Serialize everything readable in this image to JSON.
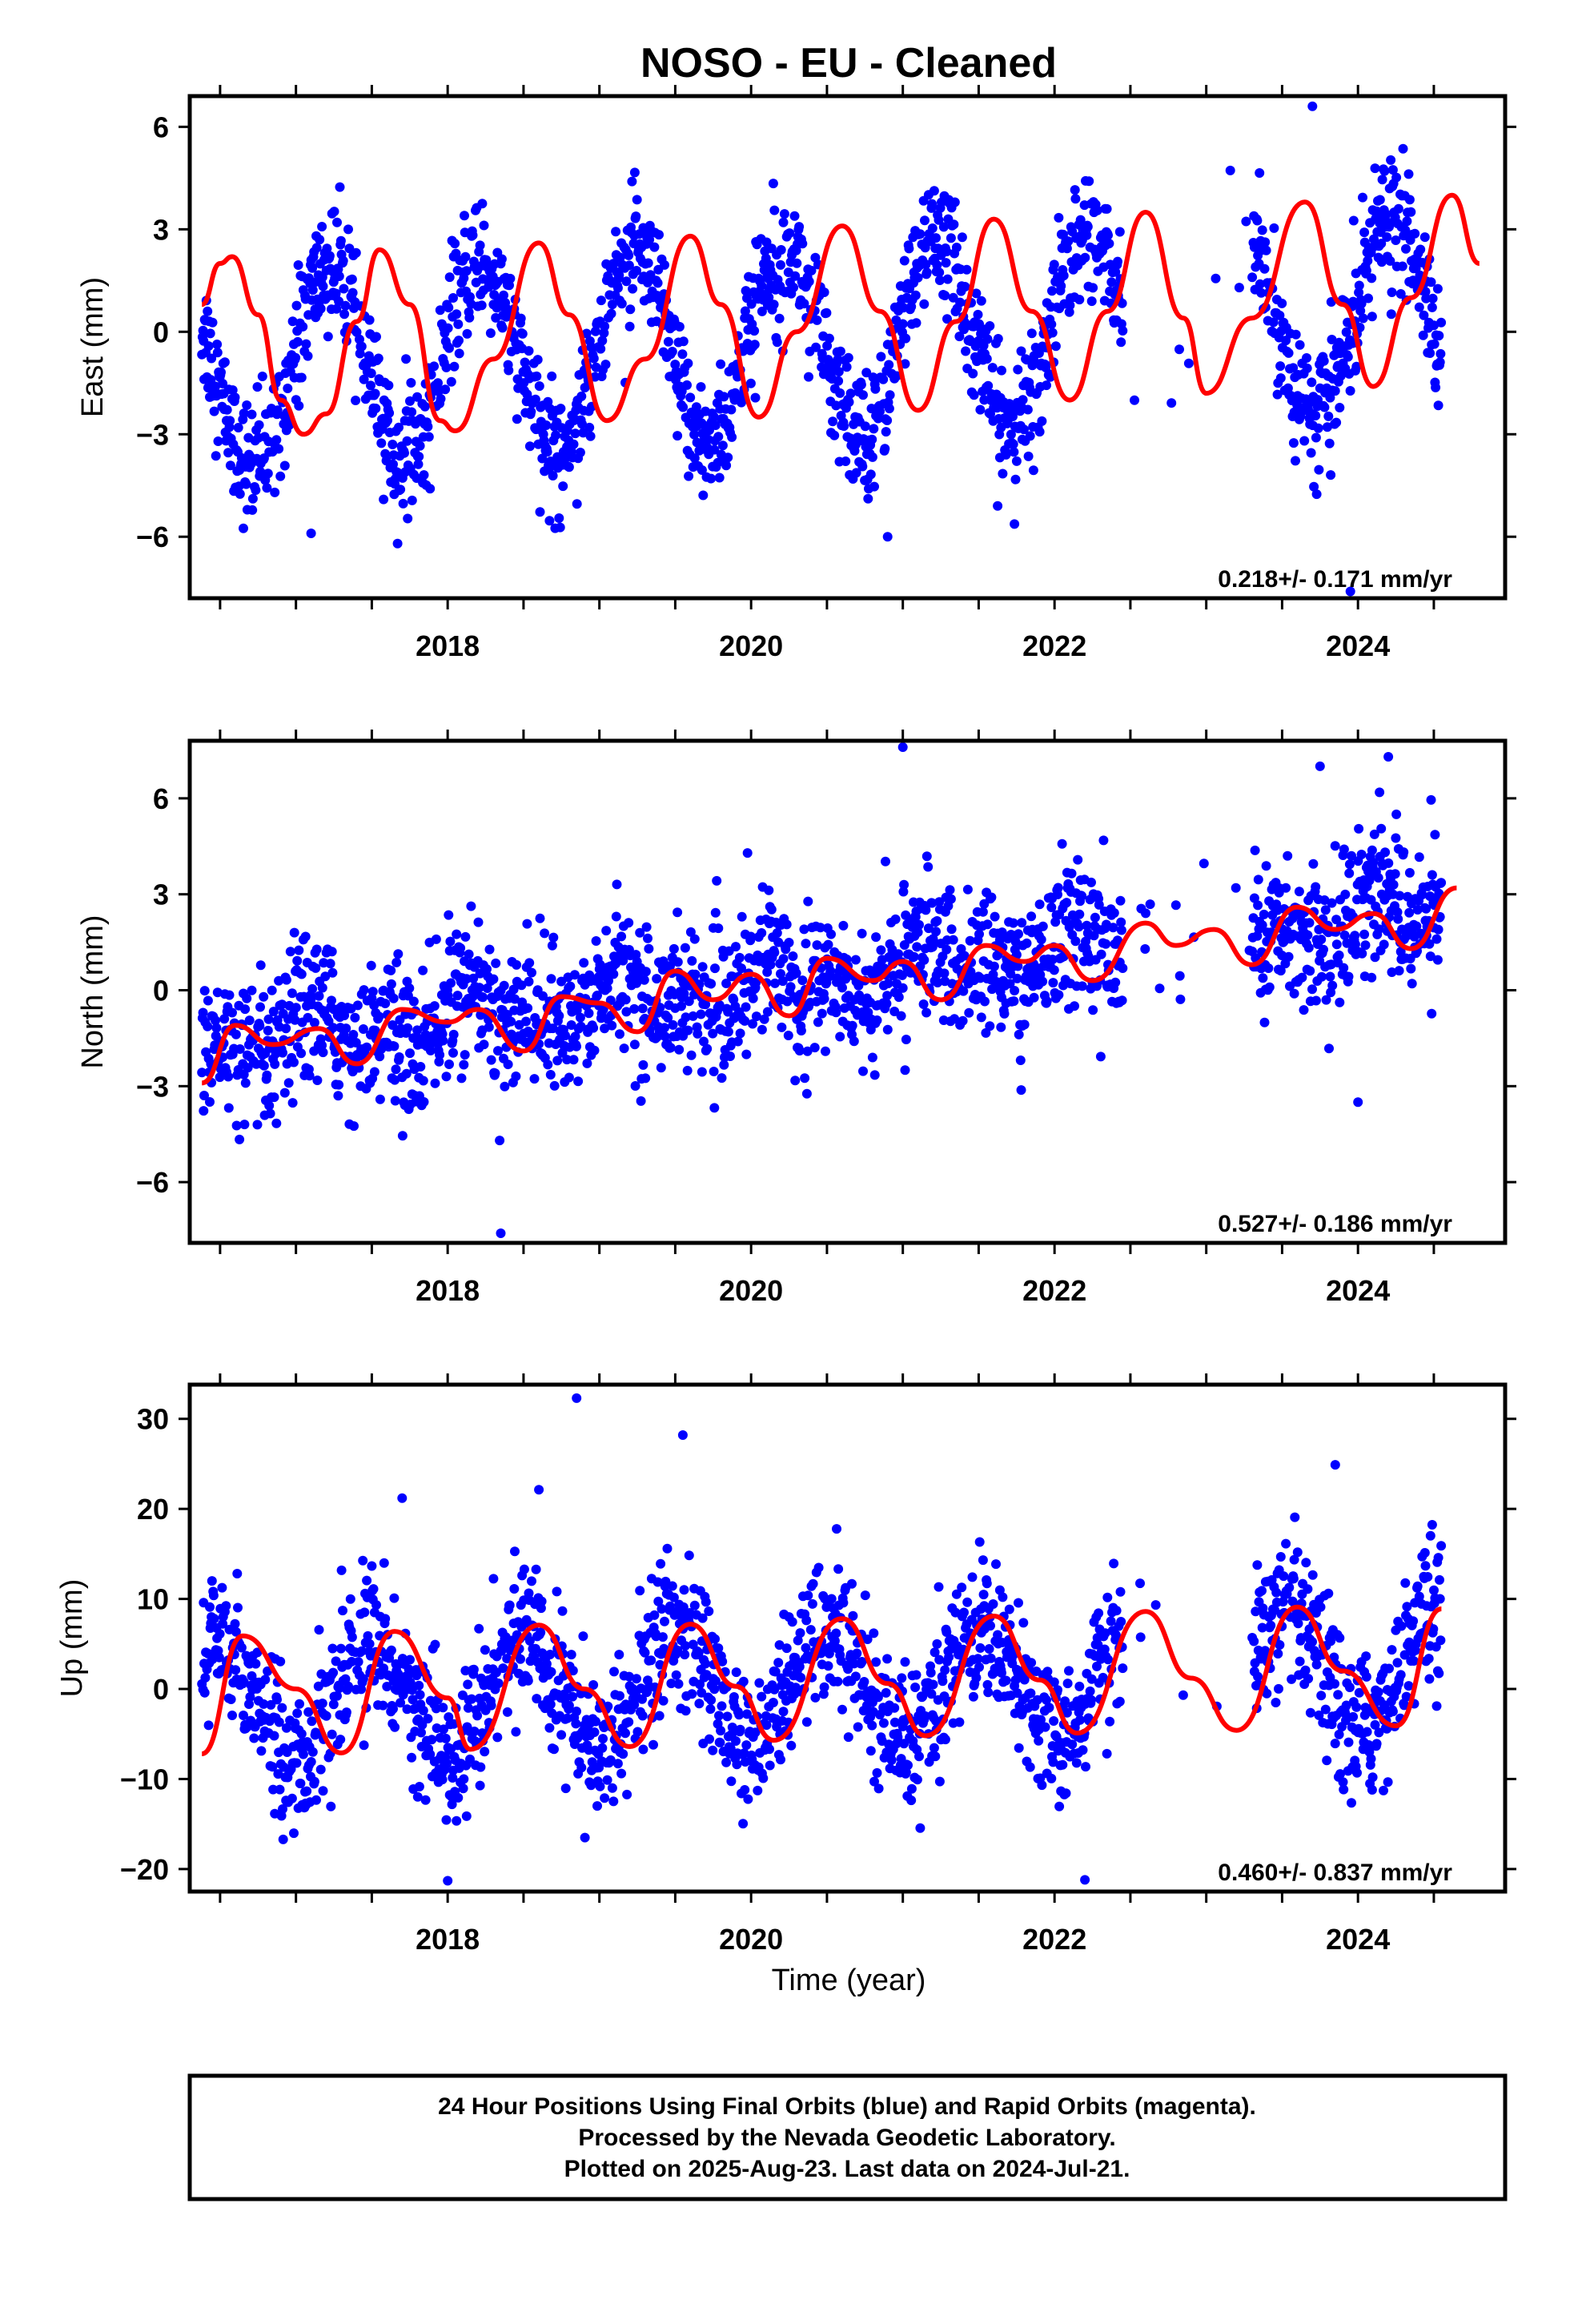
{
  "chart_data": {
    "title": "NOSO  - EU - Cleaned",
    "type": "scatter",
    "xlabel": "Time (year)",
    "x_range": [
      2016.3,
      2024.97
    ],
    "x_tick_labels": [
      "2018",
      "2020",
      "2022",
      "2024"
    ],
    "x_tick_values": [
      2018,
      2020,
      2022,
      2024
    ],
    "x_minor_ticks": [
      2016.5,
      2017,
      2017.5,
      2018,
      2018.5,
      2019,
      2019.5,
      2020,
      2020.5,
      2021,
      2021.5,
      2022,
      2022.5,
      2023,
      2023.5,
      2024,
      2024.5
    ],
    "colors": {
      "observed": "#0000ff",
      "model": "#ff0000",
      "frame": "#000000"
    },
    "data_span": {
      "start": 2016.38,
      "end": 2024.55
    },
    "panels": [
      {
        "name": "east",
        "ylabel": "East (mm)",
        "ylim": [
          -7.8,
          6.9
        ],
        "y_ticks": [
          -6,
          -3,
          0,
          3,
          6
        ],
        "y_tick_labels": [
          "−6",
          "−3",
          "0",
          "3",
          "6"
        ],
        "rate_text": "0.218+/- 0.171 mm/yr",
        "model": {
          "offset": -0.3,
          "trend": 0.218,
          "trend_ref": 2020.4,
          "annual_sin": 2.75,
          "annual_cos": 0.6,
          "semi_sin": 0.0,
          "semi_cos": 0.0
        },
        "scatter_sigma": 0.9,
        "model_curve_points": [
          [
            2016.38,
            0.8
          ],
          [
            2016.5,
            2.0
          ],
          [
            2016.58,
            2.2
          ],
          [
            2016.75,
            0.5
          ],
          [
            2016.9,
            -2.0
          ],
          [
            2017.05,
            -3.0
          ],
          [
            2017.2,
            -2.4
          ],
          [
            2017.4,
            0.3
          ],
          [
            2017.55,
            2.4
          ],
          [
            2017.75,
            0.8
          ],
          [
            2017.95,
            -2.6
          ],
          [
            2018.05,
            -2.9
          ],
          [
            2018.3,
            -0.8
          ],
          [
            2018.6,
            2.6
          ],
          [
            2018.8,
            0.5
          ],
          [
            2019.05,
            -2.6
          ],
          [
            2019.3,
            -0.8
          ],
          [
            2019.6,
            2.8
          ],
          [
            2019.8,
            0.8
          ],
          [
            2020.05,
            -2.5
          ],
          [
            2020.3,
            0.0
          ],
          [
            2020.6,
            3.1
          ],
          [
            2020.85,
            0.6
          ],
          [
            2021.1,
            -2.3
          ],
          [
            2021.35,
            0.3
          ],
          [
            2021.6,
            3.3
          ],
          [
            2021.85,
            0.6
          ],
          [
            2022.1,
            -2.0
          ],
          [
            2022.35,
            0.6
          ],
          [
            2022.6,
            3.5
          ],
          [
            2022.85,
            0.4
          ],
          [
            2023.0,
            -1.8
          ],
          [
            2023.3,
            0.4
          ],
          [
            2023.65,
            3.8
          ],
          [
            2023.9,
            0.8
          ],
          [
            2024.1,
            -1.6
          ],
          [
            2024.35,
            1.0
          ],
          [
            2024.62,
            4.0
          ],
          [
            2024.8,
            2.0
          ]
        ],
        "outliers": [
          [
            2023.95,
            -7.6
          ],
          [
            2017.1,
            -5.9
          ],
          [
            2020.9,
            -6.0
          ],
          [
            2023.7,
            6.6
          ]
        ]
      },
      {
        "name": "north",
        "ylabel": "North (mm)",
        "ylim": [
          -7.9,
          7.8
        ],
        "y_ticks": [
          -6,
          -3,
          0,
          3,
          6
        ],
        "y_tick_labels": [
          "−6",
          "−3",
          "0",
          "3",
          "6"
        ],
        "rate_text": "0.527+/- 0.186 mm/yr",
        "model": {
          "offset": 0.3,
          "trend": 0.527,
          "trend_ref": 2020.4,
          "annual_sin": 0.5,
          "annual_cos": 0.3,
          "semi_sin": 0.4,
          "semi_cos": 0.2
        },
        "scatter_sigma": 1.1,
        "model_curve_points": [
          [
            2016.38,
            -2.9
          ],
          [
            2016.6,
            -1.1
          ],
          [
            2016.85,
            -1.7
          ],
          [
            2017.15,
            -1.2
          ],
          [
            2017.4,
            -2.3
          ],
          [
            2017.7,
            -0.6
          ],
          [
            2018.0,
            -1.0
          ],
          [
            2018.2,
            -0.6
          ],
          [
            2018.5,
            -1.9
          ],
          [
            2018.75,
            -0.2
          ],
          [
            2019.0,
            -0.4
          ],
          [
            2019.25,
            -1.3
          ],
          [
            2019.5,
            0.6
          ],
          [
            2019.75,
            -0.3
          ],
          [
            2020.0,
            0.5
          ],
          [
            2020.25,
            -0.8
          ],
          [
            2020.5,
            1.0
          ],
          [
            2020.8,
            0.3
          ],
          [
            2021.0,
            0.9
          ],
          [
            2021.25,
            -0.3
          ],
          [
            2021.55,
            1.4
          ],
          [
            2021.8,
            0.9
          ],
          [
            2022.0,
            1.4
          ],
          [
            2022.25,
            0.3
          ],
          [
            2022.6,
            2.1
          ],
          [
            2022.8,
            1.4
          ],
          [
            2023.05,
            1.9
          ],
          [
            2023.3,
            0.8
          ],
          [
            2023.6,
            2.6
          ],
          [
            2023.85,
            1.9
          ],
          [
            2024.1,
            2.4
          ],
          [
            2024.35,
            1.3
          ],
          [
            2024.65,
            3.2
          ]
        ],
        "outliers": [
          [
            2021.0,
            7.6
          ],
          [
            2018.35,
            -7.6
          ],
          [
            2024.2,
            7.3
          ],
          [
            2023.75,
            7.0
          ],
          [
            2024.0,
            -3.5
          ]
        ]
      },
      {
        "name": "up",
        "ylabel": "Up (mm)",
        "ylim": [
          -22.5,
          33.8
        ],
        "y_ticks": [
          -20,
          -10,
          0,
          10,
          20,
          30
        ],
        "y_tick_labels": [
          "−20",
          "−10",
          "0",
          "10",
          "20",
          "30"
        ],
        "rate_text": "0.460+/- 0.837 mm/yr",
        "model": {
          "offset": 0.3,
          "trend": 0.46,
          "trend_ref": 2020.4,
          "annual_sin": -0.5,
          "annual_cos": -6.5,
          "semi_sin": 0.0,
          "semi_cos": 0.0
        },
        "scatter_sigma": 4.0,
        "model_curve_points": [
          [
            2016.38,
            -7.2
          ],
          [
            2016.65,
            5.9
          ],
          [
            2017.0,
            0.0
          ],
          [
            2017.3,
            -7.1
          ],
          [
            2017.65,
            6.4
          ],
          [
            2018.0,
            -1.0
          ],
          [
            2018.15,
            -6.7
          ],
          [
            2018.6,
            7.1
          ],
          [
            2018.9,
            0.0
          ],
          [
            2019.2,
            -6.4
          ],
          [
            2019.6,
            7.2
          ],
          [
            2019.9,
            0.3
          ],
          [
            2020.15,
            -5.7
          ],
          [
            2020.6,
            7.8
          ],
          [
            2020.9,
            0.6
          ],
          [
            2021.15,
            -5.2
          ],
          [
            2021.6,
            8.1
          ],
          [
            2021.9,
            1.0
          ],
          [
            2022.15,
            -4.9
          ],
          [
            2022.6,
            8.6
          ],
          [
            2022.9,
            1.2
          ],
          [
            2023.2,
            -4.6
          ],
          [
            2023.6,
            9.1
          ],
          [
            2023.9,
            2.0
          ],
          [
            2024.25,
            -4.1
          ],
          [
            2024.55,
            8.9
          ]
        ],
        "outliers": [
          [
            2018.85,
            32.3
          ],
          [
            2019.55,
            28.2
          ],
          [
            2023.85,
            24.9
          ],
          [
            2017.7,
            21.2
          ],
          [
            2018.0,
            -21.3
          ],
          [
            2022.2,
            -21.2
          ]
        ]
      }
    ],
    "gap": [
      2022.45,
      2023.3
    ]
  },
  "footer": {
    "line1": "24 Hour Positions Using Final Orbits (blue) and Rapid Orbits (magenta).",
    "line2": "Processed by the Nevada Geodetic Laboratory.",
    "line3": "Plotted on 2025-Aug-23. Last data on 2024-Jul-21."
  }
}
